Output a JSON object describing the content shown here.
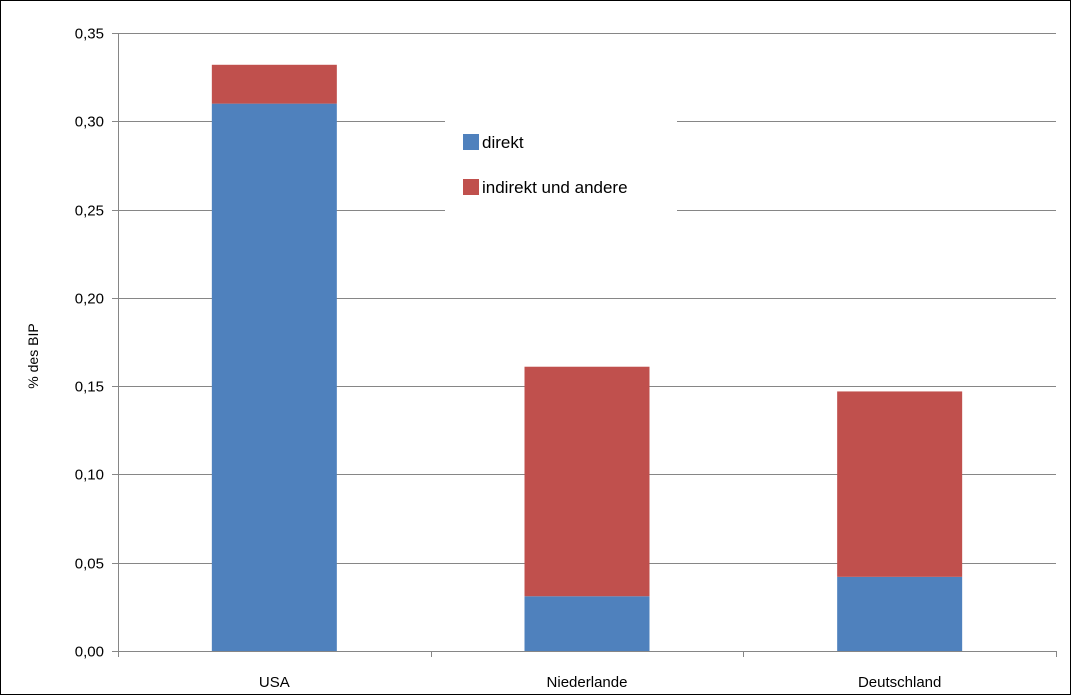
{
  "chart_data": {
    "type": "bar",
    "stacked": true,
    "categories": [
      "USA",
      "Niederlande",
      "Deutschland"
    ],
    "series": [
      {
        "name": "direkt",
        "color": "#4F81BD",
        "values": [
          0.31,
          0.031,
          0.042
        ]
      },
      {
        "name": "indirekt und andere",
        "color": "#C0504D",
        "values": [
          0.022,
          0.13,
          0.105
        ]
      }
    ],
    "title": "",
    "xlabel": "",
    "ylabel": "% des BIP",
    "ylim": [
      0,
      0.35
    ],
    "yticks": [
      "0,00",
      "0,05",
      "0,10",
      "0,15",
      "0,20",
      "0,25",
      "0,30",
      "0,35"
    ],
    "grid": "horizontal",
    "legend_position": "top-center"
  }
}
